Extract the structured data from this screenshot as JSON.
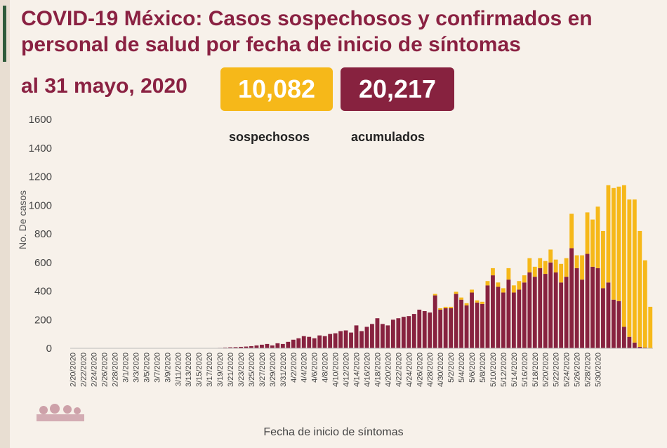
{
  "header": {
    "title": "COVID-19 México: Casos sospechosos y confirmados en personal de salud por fecha de inicio de síntomas",
    "date": "al 31 mayo, 2020"
  },
  "badges": {
    "suspected_value": "10,082",
    "accumulated_value": "20,217",
    "suspected_label": "sospechosos",
    "accumulated_label": "acumulados"
  },
  "colors": {
    "suspected": "#f6b819",
    "confirmed": "#87223f",
    "title": "#8a2142"
  },
  "chart_data": {
    "type": "bar",
    "stacked": true,
    "xlabel": "Fecha de inicio de síntomas",
    "ylabel": "No. De casos",
    "ylim": [
      0,
      1600
    ],
    "yticks": [
      0,
      200,
      400,
      600,
      800,
      1000,
      1200,
      1400,
      1600
    ],
    "grid": false,
    "start_date": "2020-02-20",
    "tick_labels": [
      "2/20/2020",
      "2/22/2020",
      "2/24/2020",
      "2/26/2020",
      "2/28/2020",
      "3/1/2020",
      "3/3/2020",
      "3/5/2020",
      "3/7/2020",
      "3/9/2020",
      "3/11/2020",
      "3/13/2020",
      "3/15/2020",
      "3/17/2020",
      "3/19/2020",
      "3/21/2020",
      "3/23/2020",
      "3/25/2020",
      "3/27/2020",
      "3/29/2020",
      "3/31/2020",
      "4/2/2020",
      "4/4/2020",
      "4/6/2020",
      "4/8/2020",
      "4/10/2020",
      "4/12/2020",
      "4/14/2020",
      "4/16/2020",
      "4/18/2020",
      "4/20/2020",
      "4/22/2020",
      "4/24/2020",
      "4/26/2020",
      "4/28/2020",
      "4/30/2020",
      "5/2/2020",
      "5/4/2020",
      "5/6/2020",
      "5/8/2020",
      "5/10/2020",
      "5/12/2020",
      "5/14/2020",
      "5/16/2020",
      "5/18/2020",
      "5/20/2020",
      "5/22/2020",
      "5/24/2020",
      "5/26/2020",
      "5/28/2020",
      "5/30/2020"
    ],
    "series": [
      {
        "name": "acumulados",
        "values": [
          0,
          0,
          0,
          0,
          0,
          0,
          0,
          0,
          0,
          0,
          0,
          0,
          0,
          0,
          0,
          0,
          0,
          0,
          0,
          0,
          0,
          0,
          1,
          0,
          0,
          0,
          1,
          0,
          3,
          5,
          7,
          8,
          10,
          12,
          15,
          20,
          25,
          30,
          20,
          35,
          30,
          45,
          60,
          70,
          85,
          80,
          70,
          90,
          85,
          100,
          105,
          120,
          125,
          110,
          160,
          120,
          150,
          170,
          210,
          170,
          160,
          200,
          210,
          220,
          225,
          240,
          270,
          260,
          250,
          370,
          270,
          280,
          280,
          380,
          340,
          300,
          390,
          320,
          310,
          440,
          510,
          430,
          390,
          480,
          390,
          410,
          460,
          530,
          500,
          560,
          520,
          600,
          530,
          460,
          500,
          700,
          560,
          480,
          660,
          570,
          560,
          420,
          460,
          340,
          330,
          150,
          80,
          40,
          10,
          5,
          0
        ]
      },
      {
        "name": "sospechosos",
        "values": [
          0,
          0,
          0,
          0,
          0,
          0,
          0,
          0,
          0,
          0,
          0,
          0,
          0,
          0,
          0,
          0,
          0,
          0,
          0,
          0,
          0,
          0,
          0,
          0,
          0,
          0,
          0,
          0,
          0,
          0,
          0,
          0,
          0,
          0,
          0,
          0,
          0,
          0,
          0,
          0,
          0,
          0,
          0,
          0,
          0,
          0,
          0,
          0,
          0,
          0,
          0,
          0,
          0,
          0,
          0,
          0,
          0,
          0,
          0,
          0,
          0,
          0,
          0,
          0,
          0,
          0,
          0,
          0,
          0,
          10,
          10,
          10,
          10,
          15,
          15,
          15,
          20,
          15,
          15,
          30,
          50,
          30,
          30,
          80,
          50,
          60,
          50,
          100,
          70,
          70,
          90,
          90,
          90,
          130,
          130,
          240,
          90,
          170,
          290,
          330,
          430,
          400,
          680,
          780,
          800,
          990,
          960,
          1000,
          810,
          610,
          290,
          60
        ]
      }
    ]
  }
}
